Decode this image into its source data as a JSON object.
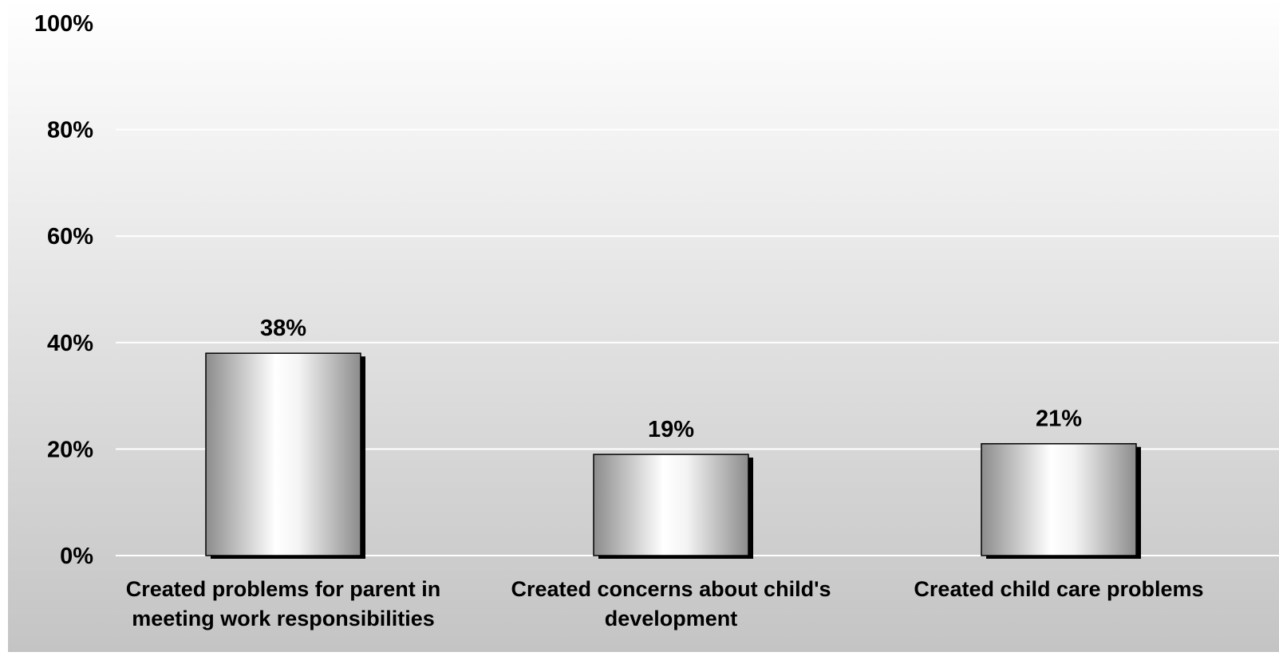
{
  "chart_data": {
    "type": "bar",
    "categories": [
      [
        "Created problems for parent in",
        "meeting work responsibilities"
      ],
      [
        "Created concerns about child's",
        "development"
      ],
      [
        "Created child care problems"
      ]
    ],
    "values": [
      38,
      19,
      21
    ],
    "value_labels": [
      "38%",
      "19%",
      "21%"
    ],
    "y_ticks": [
      "0%",
      "20%",
      "40%",
      "60%",
      "80%",
      "100%"
    ],
    "ylim": [
      0,
      100
    ],
    "grid": true,
    "title": "",
    "xlabel": "",
    "ylabel": ""
  },
  "colors": {
    "background_top": "#ffffff",
    "background_bottom": "#c4c4c4",
    "gridline": "#ffffff",
    "bar_edge": "#000000",
    "bar_dark": "#8c8c8c",
    "bar_light": "#ffffff"
  }
}
